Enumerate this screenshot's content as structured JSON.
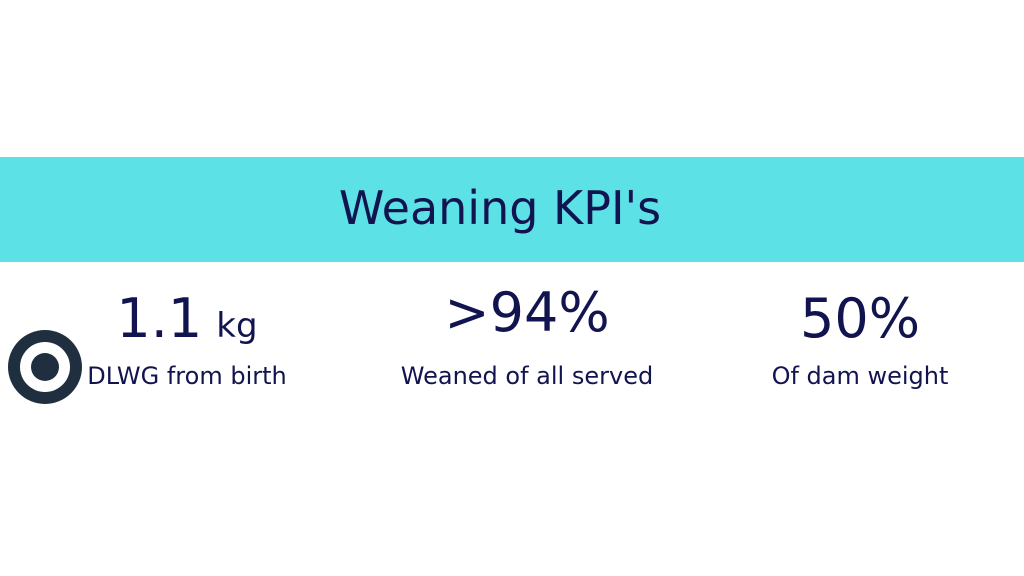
{
  "header": {
    "title": "Weaning KPI's"
  },
  "kpis": [
    {
      "value": "1.1",
      "unit": "kg",
      "label": "DLWG from birth"
    },
    {
      "value": ">94%",
      "label": "Weaned of all served"
    },
    {
      "value": "50%",
      "label": "Of dam weight"
    }
  ]
}
